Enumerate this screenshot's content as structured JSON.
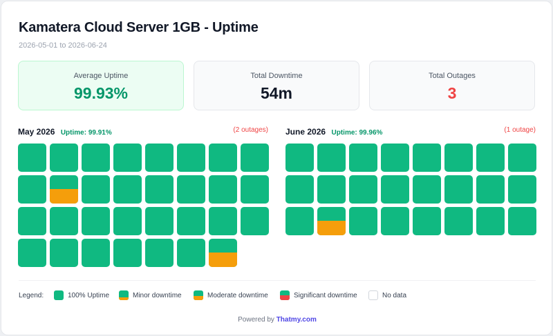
{
  "header": {
    "title": "Kamatera Cloud Server 1GB - Uptime",
    "date_range": "2026-05-01 to 2026-06-24"
  },
  "stats": {
    "average_uptime": {
      "label": "Average Uptime",
      "value": "99.93%",
      "color": "#059669"
    },
    "total_downtime": {
      "label": "Total Downtime",
      "value": "54m",
      "color": "#111827"
    },
    "total_outages": {
      "label": "Total Outages",
      "value": "3",
      "color": "#ef4444"
    }
  },
  "colors": {
    "uptime": "#10b981",
    "minor": "#f59e0b",
    "moderate": "#f59e0b",
    "significant": "#ef4444",
    "accent_green": "#059669",
    "accent_red": "#ef4444"
  },
  "months": [
    {
      "name": "May 2026",
      "uptime": "Uptime: 99.91%",
      "outages": "(2 outages)",
      "days": [
        {
          "level": "full"
        },
        {
          "level": "full"
        },
        {
          "level": "full"
        },
        {
          "level": "full"
        },
        {
          "level": "full"
        },
        {
          "level": "full"
        },
        {
          "level": "full"
        },
        {
          "level": "full"
        },
        {
          "level": "full"
        },
        {
          "level": "minor",
          "down_fraction": 0.5
        },
        {
          "level": "full"
        },
        {
          "level": "full"
        },
        {
          "level": "full"
        },
        {
          "level": "full"
        },
        {
          "level": "full"
        },
        {
          "level": "full"
        },
        {
          "level": "full"
        },
        {
          "level": "full"
        },
        {
          "level": "full"
        },
        {
          "level": "full"
        },
        {
          "level": "full"
        },
        {
          "level": "full"
        },
        {
          "level": "full"
        },
        {
          "level": "full"
        },
        {
          "level": "full"
        },
        {
          "level": "full"
        },
        {
          "level": "full"
        },
        {
          "level": "full"
        },
        {
          "level": "full"
        },
        {
          "level": "full"
        },
        {
          "level": "moderate",
          "down_fraction": 0.5
        }
      ]
    },
    {
      "name": "June 2026",
      "uptime": "Uptime: 99.96%",
      "outages": "(1 outage)",
      "days": [
        {
          "level": "full"
        },
        {
          "level": "full"
        },
        {
          "level": "full"
        },
        {
          "level": "full"
        },
        {
          "level": "full"
        },
        {
          "level": "full"
        },
        {
          "level": "full"
        },
        {
          "level": "full"
        },
        {
          "level": "full"
        },
        {
          "level": "full"
        },
        {
          "level": "full"
        },
        {
          "level": "full"
        },
        {
          "level": "full"
        },
        {
          "level": "full"
        },
        {
          "level": "full"
        },
        {
          "level": "full"
        },
        {
          "level": "full"
        },
        {
          "level": "minor",
          "down_fraction": 0.5
        },
        {
          "level": "full"
        },
        {
          "level": "full"
        },
        {
          "level": "full"
        },
        {
          "level": "full"
        },
        {
          "level": "full"
        },
        {
          "level": "full"
        }
      ]
    }
  ],
  "legend": {
    "label": "Legend:",
    "items": [
      {
        "name": "100% Uptime"
      },
      {
        "name": "Minor downtime"
      },
      {
        "name": "Moderate downtime"
      },
      {
        "name": "Significant downtime"
      },
      {
        "name": "No data"
      }
    ]
  },
  "footer": {
    "powered_by": "Powered by",
    "brand": "Thatmy.com"
  }
}
